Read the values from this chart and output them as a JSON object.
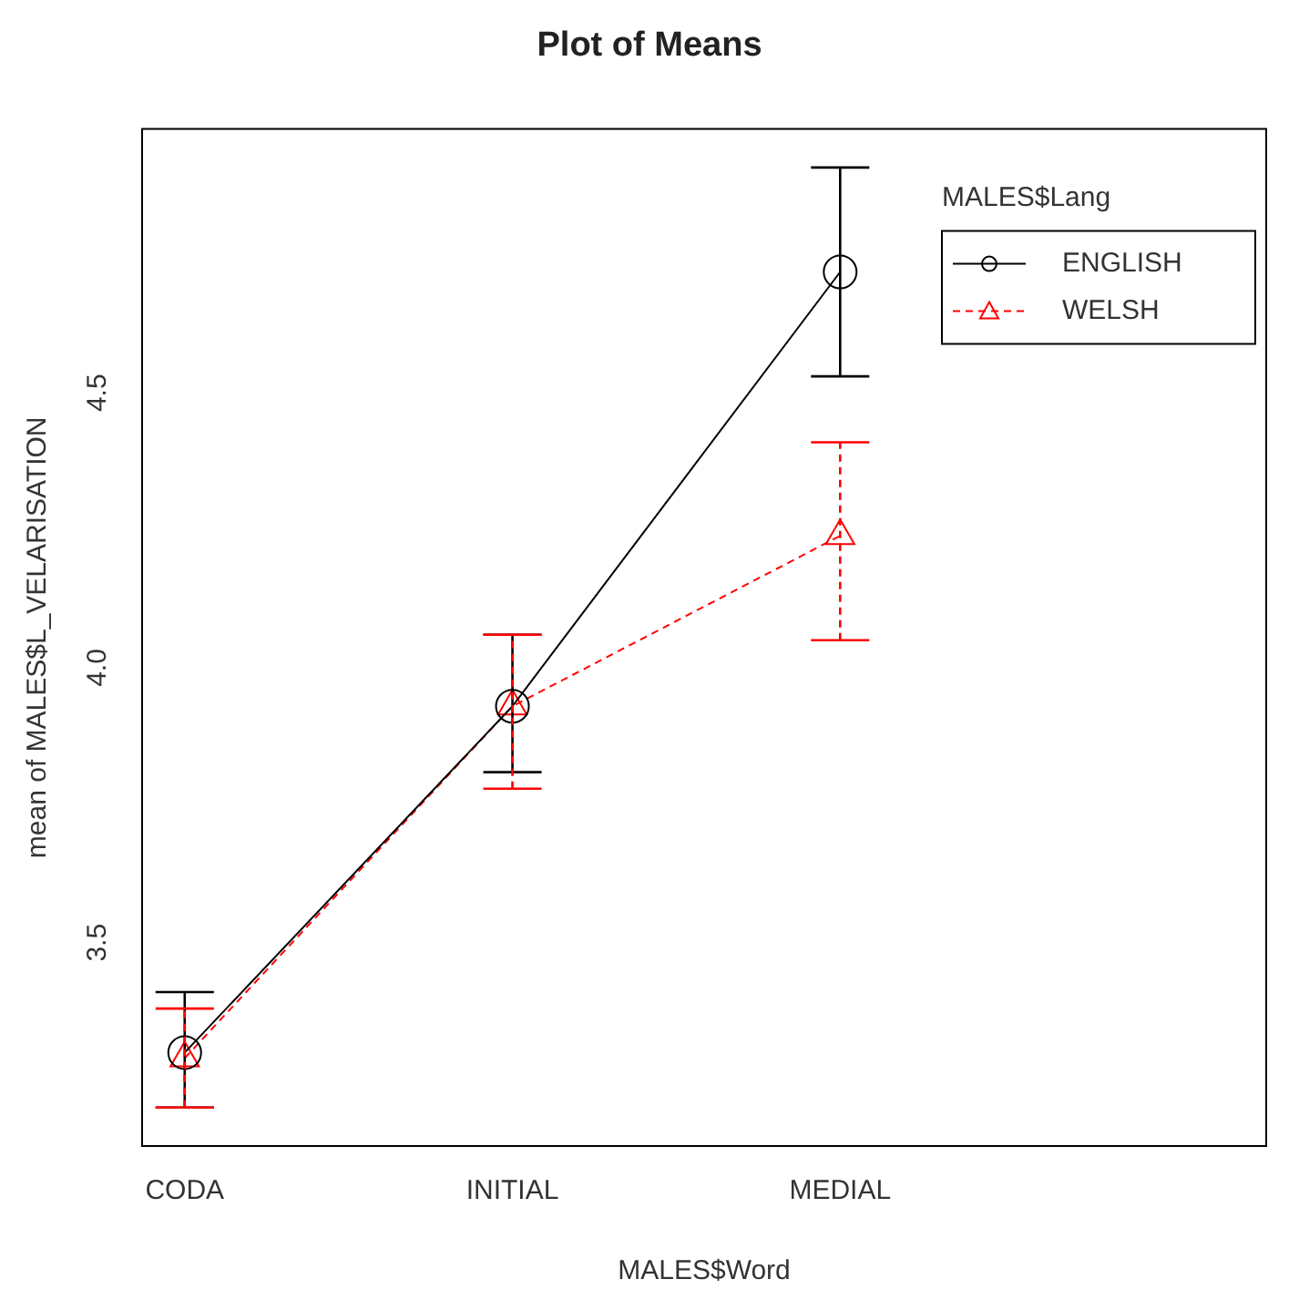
{
  "chart_data": {
    "type": "line",
    "title": "Plot of Means",
    "xlabel": "MALES$Word",
    "ylabel": "mean of MALES$L_VELARISATION",
    "legend_title": "MALES$Lang",
    "categories": [
      "CODA",
      "INITIAL",
      "MEDIAL"
    ],
    "ylim": [
      3.13,
      4.98
    ],
    "yticks": [
      {
        "value": 3.5,
        "label": "3.5"
      },
      {
        "value": 4,
        "label": "4.0"
      },
      {
        "value": 4.5,
        "label": "4.5"
      }
    ],
    "grid": false,
    "legend": "top right",
    "series": [
      {
        "name": "ENGLISH",
        "color": "#000000",
        "marker": "circle",
        "line_style": "solid",
        "values": [
          3.3,
          3.93,
          4.72
        ],
        "errors": [
          [
            3.2,
            3.41
          ],
          [
            3.81,
            4.06
          ],
          [
            4.53,
            4.91
          ]
        ]
      },
      {
        "name": "WELSH",
        "color": "#ff0000",
        "marker": "triangle",
        "line_style": "dashed",
        "values": [
          3.29,
          3.93,
          4.24
        ],
        "errors": [
          [
            3.2,
            3.38
          ],
          [
            3.78,
            4.06
          ],
          [
            4.05,
            4.41
          ]
        ]
      }
    ]
  }
}
